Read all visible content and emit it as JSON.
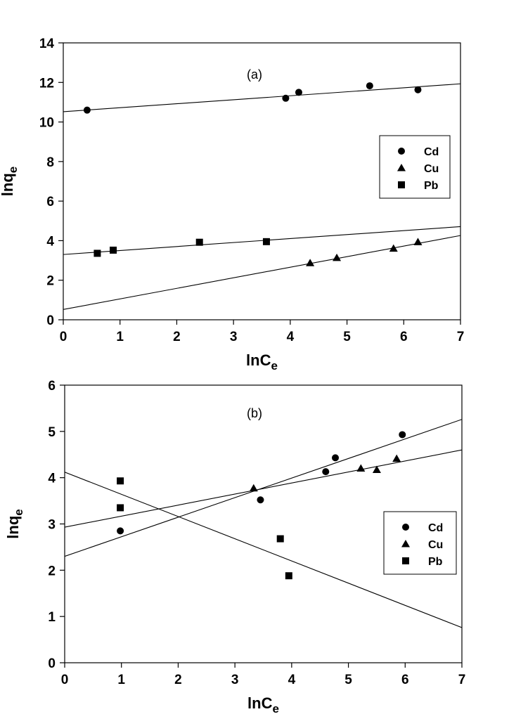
{
  "chart_data": [
    {
      "type": "scatter",
      "panel_label": "(a)",
      "xlabel": "lnC",
      "xlabel_sub": "e",
      "ylabel": "lnq",
      "ylabel_sub": "e",
      "xlim": [
        0,
        7
      ],
      "ylim": [
        0,
        14
      ],
      "xticks": [
        0,
        1,
        2,
        3,
        4,
        5,
        6,
        7
      ],
      "yticks": [
        0,
        2,
        4,
        6,
        8,
        10,
        12,
        14
      ],
      "grid": false,
      "legend_position": "right",
      "series": [
        {
          "name": "Cd",
          "marker": "circle",
          "points": [
            [
              0.42,
              10.6
            ],
            [
              3.92,
              11.2
            ],
            [
              4.15,
              11.5
            ],
            [
              5.4,
              11.83
            ],
            [
              6.25,
              11.63
            ]
          ],
          "fit": [
            [
              0,
              10.52
            ],
            [
              7,
              11.93
            ]
          ]
        },
        {
          "name": "Cu",
          "marker": "triangle",
          "points": [
            [
              4.35,
              2.87
            ],
            [
              4.82,
              3.13
            ],
            [
              5.82,
              3.6
            ],
            [
              6.25,
              3.93
            ]
          ],
          "fit": [
            [
              0,
              0.52
            ],
            [
              7,
              4.26
            ]
          ]
        },
        {
          "name": "Pb",
          "marker": "square",
          "points": [
            [
              0.6,
              3.36
            ],
            [
              0.88,
              3.52
            ],
            [
              2.4,
              3.92
            ],
            [
              3.58,
              3.95
            ]
          ],
          "fit": [
            [
              0,
              3.3
            ],
            [
              7,
              4.71
            ]
          ]
        }
      ]
    },
    {
      "type": "scatter",
      "panel_label": "(b)",
      "xlabel": "lnC",
      "xlabel_sub": "e",
      "ylabel": "lnq",
      "ylabel_sub": "e",
      "xlim": [
        0,
        7
      ],
      "ylim": [
        0,
        6
      ],
      "xticks": [
        0,
        1,
        2,
        3,
        4,
        5,
        6,
        7
      ],
      "yticks": [
        0,
        1,
        2,
        3,
        4,
        5,
        6
      ],
      "grid": false,
      "legend_position": "bottom-right",
      "series": [
        {
          "name": "Cd",
          "marker": "circle",
          "points": [
            [
              0.98,
              2.85
            ],
            [
              3.45,
              3.52
            ],
            [
              4.6,
              4.13
            ],
            [
              4.77,
              4.43
            ],
            [
              5.95,
              4.93
            ]
          ],
          "fit": [
            [
              0,
              2.3
            ],
            [
              7,
              5.26
            ]
          ]
        },
        {
          "name": "Cu",
          "marker": "triangle",
          "points": [
            [
              3.33,
              3.77
            ],
            [
              5.22,
              4.2
            ],
            [
              5.5,
              4.17
            ],
            [
              5.85,
              4.41
            ]
          ],
          "fit": [
            [
              0,
              2.93
            ],
            [
              7,
              4.6
            ]
          ]
        },
        {
          "name": "Pb",
          "marker": "square",
          "points": [
            [
              0.98,
              3.93
            ],
            [
              0.98,
              3.35
            ],
            [
              3.8,
              2.68
            ],
            [
              3.95,
              1.88
            ]
          ],
          "fit": [
            [
              0,
              4.12
            ],
            [
              7,
              0.76
            ]
          ]
        }
      ]
    }
  ]
}
